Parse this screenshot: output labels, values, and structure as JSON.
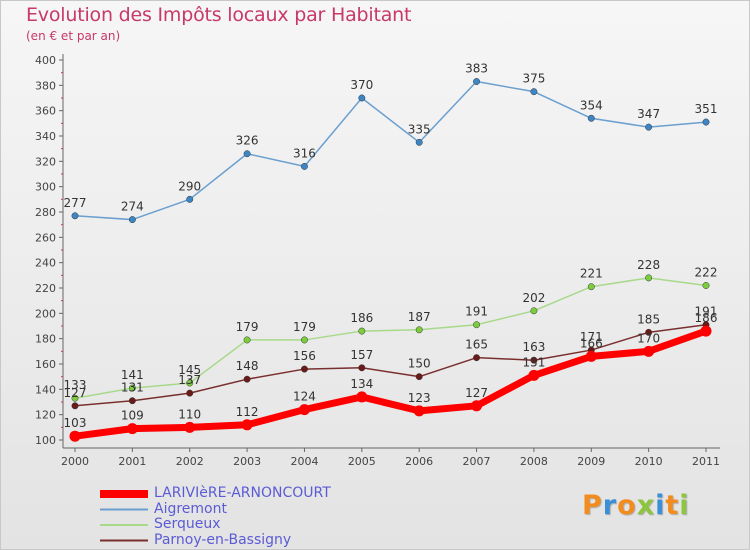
{
  "header": {
    "title": "Evolution des Impôts locaux par Habitant",
    "subtitle": "(en € et par an)"
  },
  "logo": {
    "letters": [
      "P",
      "r",
      "o",
      "x",
      "i",
      "t",
      "i"
    ],
    "colors": [
      "#f28c1e",
      "#3a8fd6",
      "#f28c1e",
      "#8cc63e",
      "#3a8fd6",
      "#f28c1e",
      "#8cc63e"
    ]
  },
  "chart_data": {
    "type": "line",
    "x": [
      "2000",
      "2001",
      "2002",
      "2003",
      "2004",
      "2005",
      "2006",
      "2007",
      "2008",
      "2009",
      "2010",
      "2011"
    ],
    "ylim": [
      100,
      400
    ],
    "yticks": [
      100,
      120,
      140,
      160,
      180,
      200,
      220,
      240,
      260,
      280,
      300,
      320,
      340,
      360,
      380,
      400
    ],
    "grid": false,
    "legend_position": "bottom-left",
    "series": [
      {
        "name": "Aigremont",
        "color": "#6a9fd0",
        "dot": "#3d86c6",
        "values": [
          277,
          274,
          290,
          326,
          316,
          370,
          335,
          383,
          375,
          354,
          347,
          351
        ]
      },
      {
        "name": "Serqueux",
        "color": "#a8d98a",
        "dot": "#7ccd3c",
        "values": [
          133,
          141,
          145,
          179,
          179,
          186,
          187,
          191,
          202,
          221,
          228,
          222
        ]
      },
      {
        "name": "Parnoy-en-Bassigny",
        "color": "#7a2f2f",
        "dot": "#6b1a1a",
        "values": [
          127,
          131,
          137,
          148,
          156,
          157,
          150,
          165,
          163,
          171,
          185,
          191
        ]
      },
      {
        "name": "LARIVIèRE-ARNONCOURT",
        "color": "#ff0000",
        "dot": "#ff0000",
        "values": [
          103,
          109,
          110,
          112,
          124,
          134,
          123,
          127,
          151,
          166,
          170,
          186
        ]
      }
    ]
  }
}
